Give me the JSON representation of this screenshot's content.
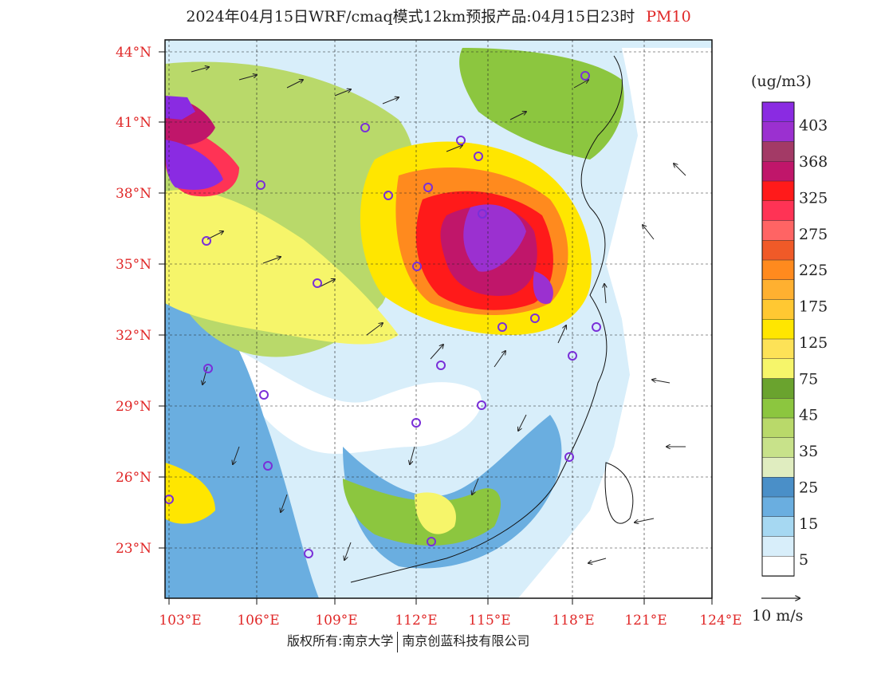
{
  "header": {
    "title": "2024年04月15日WRF/cmaq模式12km预报产品:04月15日23时",
    "pollutant": "PM10"
  },
  "map": {
    "lat_labels": [
      "44°N",
      "41°N",
      "38°N",
      "35°N",
      "32°N",
      "29°N",
      "26°N",
      "23°N"
    ],
    "lon_labels": [
      "103°E",
      "106°E",
      "109°E",
      "112°E",
      "115°E",
      "118°E",
      "121°E",
      "124°E"
    ]
  },
  "colorbar": {
    "unit": "(ug/m3)",
    "labels": [
      "403",
      "368",
      "325",
      "275",
      "225",
      "175",
      "125",
      "75",
      "45",
      "35",
      "25",
      "15",
      "5"
    ],
    "colors": [
      "#8a2be2",
      "#9b30d0",
      "#a33a66",
      "#c0166a",
      "#ff1a1a",
      "#ff3355",
      "#ff6464",
      "#f05a28",
      "#ff8a1e",
      "#ffb030",
      "#ffc832",
      "#ffe600",
      "#fde257",
      "#f6f56a",
      "#6aa32e",
      "#8cc63f",
      "#b9d96a",
      "#c8e28a",
      "#e0edc0",
      "#4a8fc8",
      "#6aaee0",
      "#a6d8f2",
      "#d8eefa",
      "#ffffff"
    ]
  },
  "wind_legend": {
    "label": "10 m/s"
  },
  "footer": {
    "left": "版权所有:南京大学",
    "right": "南京创蓝科技有限公司"
  }
}
